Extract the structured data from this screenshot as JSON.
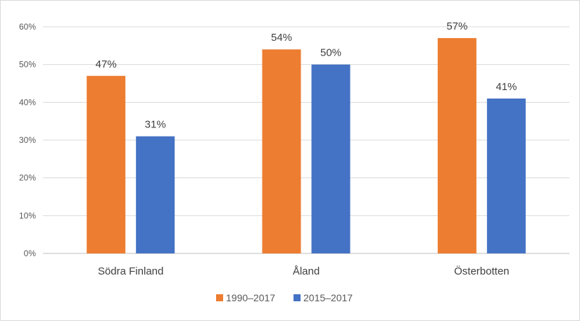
{
  "chart_data": {
    "type": "bar",
    "title": "",
    "xlabel": "",
    "ylabel": "",
    "categories": [
      "Södra Finland",
      "Åland",
      "Österbotten"
    ],
    "series": [
      {
        "name": "1990–2017",
        "color": "#ED7D31",
        "values": [
          47,
          54,
          57
        ],
        "labels": [
          "47%",
          "54%",
          "57%"
        ]
      },
      {
        "name": "2015–2017",
        "color": "#4472C4",
        "values": [
          31,
          50,
          41
        ],
        "labels": [
          "31%",
          "50%",
          "41%"
        ]
      }
    ],
    "ylim": [
      0,
      60
    ],
    "y_ticks": [
      0,
      10,
      20,
      30,
      40,
      50,
      60
    ],
    "y_tick_labels": [
      "0%",
      "10%",
      "20%",
      "30%",
      "40%",
      "50%",
      "60%"
    ],
    "grid": true,
    "legend_position": "bottom"
  }
}
